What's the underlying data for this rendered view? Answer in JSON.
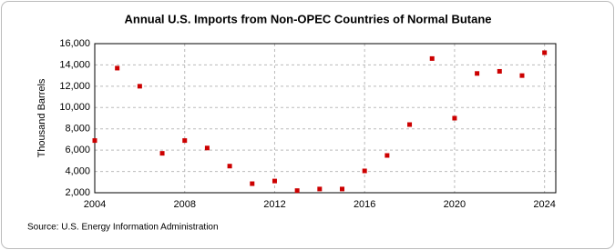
{
  "chart_data": {
    "type": "scatter",
    "title": "Annual U.S. Imports from Non-OPEC Countries of Normal Butane",
    "y_label": "Thousand Barrels",
    "source": "Source: U.S. Energy Information Administration",
    "x": [
      2004,
      2005,
      2006,
      2007,
      2008,
      2009,
      2010,
      2011,
      2012,
      2013,
      2014,
      2015,
      2016,
      2017,
      2018,
      2019,
      2020,
      2021,
      2022,
      2023,
      2024
    ],
    "series": [
      {
        "name": "Normal Butane",
        "color": "#cc0000",
        "values": [
          6900,
          13700,
          12000,
          5700,
          6900,
          6200,
          4500,
          2850,
          3100,
          2200,
          2350,
          2350,
          4050,
          5500,
          8400,
          14600,
          9000,
          13200,
          13400,
          13000,
          15150
        ]
      }
    ],
    "xlim": [
      2004,
      2024.5
    ],
    "xticks": [
      2004,
      2008,
      2012,
      2016,
      2020,
      2024
    ],
    "ylim": [
      2000,
      16000
    ],
    "yticks": [
      {
        "value": 2000,
        "label": "2,000"
      },
      {
        "value": 4000,
        "label": "4,000"
      },
      {
        "value": 6000,
        "label": "6,000"
      },
      {
        "value": 8000,
        "label": "8,000"
      },
      {
        "value": 10000,
        "label": "10,000"
      },
      {
        "value": 12000,
        "label": "12,000"
      },
      {
        "value": 14000,
        "label": "14,000"
      },
      {
        "value": 16000,
        "label": "16,000"
      }
    ],
    "grid": true
  }
}
